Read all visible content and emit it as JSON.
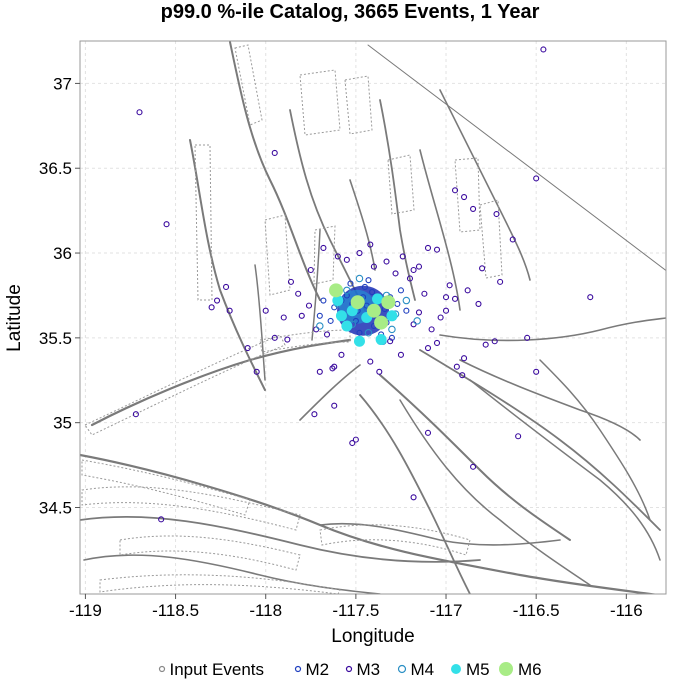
{
  "chart_data": {
    "type": "scatter",
    "title": "p99.0 %-ile Catalog, 3665 Events, 1 Year",
    "xlabel": "Longitude",
    "ylabel": "Latitude",
    "xlim": [
      -119.03,
      -115.78
    ],
    "ylim": [
      33.99,
      37.25
    ],
    "xticks": [
      -119,
      -118.5,
      -118,
      -117.5,
      -117,
      -116.5,
      -116
    ],
    "xtick_labels": [
      "-119",
      "-118.5",
      "-118",
      "-117.5",
      "-117",
      "-116.5",
      "-116"
    ],
    "yticks": [
      34.5,
      35,
      35.5,
      36,
      36.5,
      37
    ],
    "ytick_labels": [
      "34.5",
      "35",
      "35.5",
      "36",
      "36.5",
      "37"
    ],
    "grid": true,
    "legend_position": "bottom",
    "legend": [
      {
        "label": "Input Events",
        "symbol": "open-circle",
        "color": "#888888"
      },
      {
        "label": "M2",
        "symbol": "open-circle",
        "color": "#1f3fbf"
      },
      {
        "label": "M3",
        "symbol": "open-circle",
        "color": "#3a0a9e"
      },
      {
        "label": "M4",
        "symbol": "open-circle",
        "color": "#2a8fc4"
      },
      {
        "label": "M5",
        "symbol": "filled-circle",
        "color": "#33e0e8"
      },
      {
        "label": "M6",
        "symbol": "filled-circle",
        "color": "#a8ec86"
      }
    ],
    "colors": {
      "fault": "#7a7a7a",
      "grid": "#e2e2e2",
      "frame": "#999999"
    },
    "series": [
      {
        "name": "M2",
        "points": [
          [
            -117.62,
            35.68
          ],
          [
            -117.58,
            35.72
          ],
          [
            -117.55,
            35.75
          ],
          [
            -117.52,
            35.7
          ],
          [
            -117.49,
            35.66
          ],
          [
            -117.46,
            35.74
          ],
          [
            -117.44,
            35.69
          ],
          [
            -117.41,
            35.77
          ],
          [
            -117.39,
            35.63
          ],
          [
            -117.37,
            35.72
          ],
          [
            -117.34,
            35.67
          ],
          [
            -117.31,
            35.74
          ],
          [
            -117.29,
            35.62
          ],
          [
            -117.27,
            35.7
          ],
          [
            -117.57,
            35.64
          ],
          [
            -117.6,
            35.77
          ],
          [
            -117.45,
            35.8
          ],
          [
            -117.4,
            35.57
          ],
          [
            -117.33,
            35.59
          ],
          [
            -117.5,
            35.6
          ],
          [
            -117.64,
            35.6
          ],
          [
            -117.25,
            35.78
          ],
          [
            -117.36,
            35.52
          ],
          [
            -117.48,
            35.53
          ],
          [
            -117.68,
            35.72
          ],
          [
            -117.43,
            35.84
          ],
          [
            -117.22,
            35.66
          ],
          [
            -117.3,
            35.5
          ],
          [
            -117.53,
            35.82
          ],
          [
            -117.7,
            35.63
          ]
        ]
      },
      {
        "name": "M3",
        "points": [
          [
            -118.7,
            36.83
          ],
          [
            -118.22,
            35.8
          ],
          [
            -118.55,
            36.17
          ],
          [
            -118.3,
            35.68
          ],
          [
            -118.1,
            35.44
          ],
          [
            -118.05,
            35.3
          ],
          [
            -117.9,
            35.62
          ],
          [
            -117.88,
            35.49
          ],
          [
            -117.8,
            35.63
          ],
          [
            -117.75,
            35.9
          ],
          [
            -117.68,
            36.03
          ],
          [
            -117.6,
            35.98
          ],
          [
            -117.55,
            35.96
          ],
          [
            -117.48,
            36.0
          ],
          [
            -117.42,
            36.05
          ],
          [
            -117.4,
            35.92
          ],
          [
            -117.33,
            35.95
          ],
          [
            -117.28,
            35.88
          ],
          [
            -117.2,
            35.85
          ],
          [
            -117.15,
            35.92
          ],
          [
            -117.1,
            36.03
          ],
          [
            -117.05,
            36.02
          ],
          [
            -116.98,
            35.81
          ],
          [
            -116.95,
            35.73
          ],
          [
            -116.88,
            35.78
          ],
          [
            -116.82,
            35.7
          ],
          [
            -116.8,
            35.91
          ],
          [
            -116.7,
            35.83
          ],
          [
            -116.95,
            36.37
          ],
          [
            -116.9,
            36.33
          ],
          [
            -116.85,
            36.26
          ],
          [
            -116.72,
            36.23
          ],
          [
            -116.63,
            36.08
          ],
          [
            -116.5,
            36.44
          ],
          [
            -116.46,
            37.2
          ],
          [
            -116.2,
            35.74
          ],
          [
            -116.55,
            35.5
          ],
          [
            -116.5,
            35.3
          ],
          [
            -116.6,
            34.92
          ],
          [
            -116.85,
            34.74
          ],
          [
            -117.1,
            34.94
          ],
          [
            -117.18,
            34.56
          ],
          [
            -117.5,
            34.9
          ],
          [
            -117.52,
            34.88
          ],
          [
            -117.73,
            35.05
          ],
          [
            -117.63,
            35.32
          ],
          [
            -117.62,
            35.1
          ],
          [
            -117.7,
            35.3
          ],
          [
            -117.95,
            35.5
          ],
          [
            -118.0,
            35.66
          ],
          [
            -118.2,
            35.66
          ],
          [
            -118.27,
            35.72
          ],
          [
            -118.72,
            35.05
          ],
          [
            -118.58,
            34.43
          ],
          [
            -117.95,
            36.59
          ],
          [
            -116.73,
            35.48
          ],
          [
            -116.78,
            35.46
          ],
          [
            -116.94,
            35.33
          ],
          [
            -116.91,
            35.28
          ],
          [
            -116.9,
            35.38
          ],
          [
            -117.05,
            35.47
          ],
          [
            -117.1,
            35.44
          ],
          [
            -117.03,
            35.62
          ],
          [
            -117.0,
            35.74
          ],
          [
            -117.15,
            35.65
          ],
          [
            -117.18,
            35.58
          ],
          [
            -117.25,
            35.4
          ],
          [
            -117.31,
            35.48
          ],
          [
            -117.37,
            35.3
          ],
          [
            -117.42,
            35.36
          ],
          [
            -117.58,
            35.4
          ],
          [
            -117.62,
            35.33
          ],
          [
            -117.66,
            35.52
          ],
          [
            -117.72,
            35.55
          ],
          [
            -117.76,
            35.69
          ],
          [
            -117.82,
            35.76
          ],
          [
            -117.86,
            35.83
          ],
          [
            -117.24,
            35.98
          ],
          [
            -117.18,
            35.9
          ],
          [
            -117.12,
            35.76
          ],
          [
            -117.08,
            35.55
          ],
          [
            -117.0,
            35.66
          ]
        ]
      },
      {
        "name": "M4",
        "points": [
          [
            -117.55,
            35.78
          ],
          [
            -117.47,
            35.72
          ],
          [
            -117.39,
            35.68
          ],
          [
            -117.33,
            35.75
          ],
          [
            -117.28,
            35.64
          ],
          [
            -117.52,
            35.58
          ],
          [
            -117.43,
            35.53
          ],
          [
            -117.3,
            35.55
          ],
          [
            -117.6,
            35.7
          ],
          [
            -117.22,
            35.72
          ],
          [
            -117.16,
            35.6
          ],
          [
            -117.7,
            35.57
          ],
          [
            -117.48,
            35.85
          ],
          [
            -117.35,
            35.48
          ]
        ]
      },
      {
        "name": "M5",
        "points": [
          [
            -117.6,
            35.72
          ],
          [
            -117.52,
            35.66
          ],
          [
            -117.55,
            35.57
          ],
          [
            -117.44,
            35.62
          ],
          [
            -117.38,
            35.73
          ],
          [
            -117.3,
            35.63
          ],
          [
            -117.48,
            35.48
          ],
          [
            -117.36,
            35.49
          ],
          [
            -117.58,
            35.63
          ]
        ]
      },
      {
        "name": "M6",
        "points": [
          [
            -117.49,
            35.71
          ],
          [
            -117.4,
            35.66
          ],
          [
            -117.32,
            35.71
          ],
          [
            -117.36,
            35.59
          ],
          [
            -117.61,
            35.78
          ]
        ]
      }
    ]
  }
}
